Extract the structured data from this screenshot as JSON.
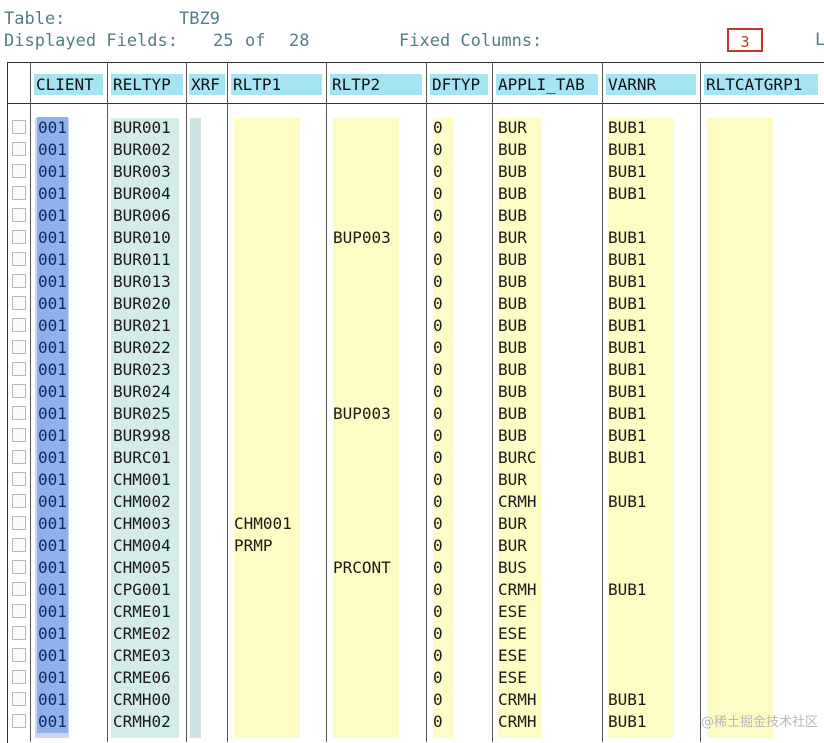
{
  "header": {
    "table_label": "Table:",
    "table_name": "TBZ9",
    "displayed_label": "Displayed Fields:",
    "displayed_count": "25",
    "of_label": "of",
    "total_count": "28",
    "fixed_label": "Fixed Columns:",
    "fixed_value": "3",
    "truncated_text": "L"
  },
  "columns": [
    "CLIENT",
    "RELTYP",
    "XRF",
    "RLTP1",
    "RLTP2",
    "DFTYP",
    "APPLI_TAB",
    "VARNR",
    "RLTCATGRP1"
  ],
  "rows": [
    {
      "client": "001",
      "reltyp": "BUR001",
      "rltp1": "",
      "rltp2": "",
      "dftyp": "0",
      "appli": "BUR",
      "varnr": "BUB1"
    },
    {
      "client": "001",
      "reltyp": "BUR002",
      "rltp1": "",
      "rltp2": "",
      "dftyp": "0",
      "appli": "BUB",
      "varnr": "BUB1"
    },
    {
      "client": "001",
      "reltyp": "BUR003",
      "rltp1": "",
      "rltp2": "",
      "dftyp": "0",
      "appli": "BUB",
      "varnr": "BUB1"
    },
    {
      "client": "001",
      "reltyp": "BUR004",
      "rltp1": "",
      "rltp2": "",
      "dftyp": "0",
      "appli": "BUB",
      "varnr": "BUB1"
    },
    {
      "client": "001",
      "reltyp": "BUR006",
      "rltp1": "",
      "rltp2": "",
      "dftyp": "0",
      "appli": "BUB",
      "varnr": ""
    },
    {
      "client": "001",
      "reltyp": "BUR010",
      "rltp1": "",
      "rltp2": "BUP003",
      "dftyp": "0",
      "appli": "BUR",
      "varnr": "BUB1"
    },
    {
      "client": "001",
      "reltyp": "BUR011",
      "rltp1": "",
      "rltp2": "",
      "dftyp": "0",
      "appli": "BUB",
      "varnr": "BUB1"
    },
    {
      "client": "001",
      "reltyp": "BUR013",
      "rltp1": "",
      "rltp2": "",
      "dftyp": "0",
      "appli": "BUB",
      "varnr": "BUB1"
    },
    {
      "client": "001",
      "reltyp": "BUR020",
      "rltp1": "",
      "rltp2": "",
      "dftyp": "0",
      "appli": "BUB",
      "varnr": "BUB1"
    },
    {
      "client": "001",
      "reltyp": "BUR021",
      "rltp1": "",
      "rltp2": "",
      "dftyp": "0",
      "appli": "BUB",
      "varnr": "BUB1"
    },
    {
      "client": "001",
      "reltyp": "BUR022",
      "rltp1": "",
      "rltp2": "",
      "dftyp": "0",
      "appli": "BUB",
      "varnr": "BUB1"
    },
    {
      "client": "001",
      "reltyp": "BUR023",
      "rltp1": "",
      "rltp2": "",
      "dftyp": "0",
      "appli": "BUB",
      "varnr": "BUB1"
    },
    {
      "client": "001",
      "reltyp": "BUR024",
      "rltp1": "",
      "rltp2": "",
      "dftyp": "0",
      "appli": "BUB",
      "varnr": "BUB1"
    },
    {
      "client": "001",
      "reltyp": "BUR025",
      "rltp1": "",
      "rltp2": "BUP003",
      "dftyp": "0",
      "appli": "BUB",
      "varnr": "BUB1"
    },
    {
      "client": "001",
      "reltyp": "BUR998",
      "rltp1": "",
      "rltp2": "",
      "dftyp": "0",
      "appli": "BUB",
      "varnr": "BUB1"
    },
    {
      "client": "001",
      "reltyp": "BURC01",
      "rltp1": "",
      "rltp2": "",
      "dftyp": "0",
      "appli": "BURC",
      "varnr": "BUB1"
    },
    {
      "client": "001",
      "reltyp": "CHM001",
      "rltp1": "",
      "rltp2": "",
      "dftyp": "0",
      "appli": "BUR",
      "varnr": ""
    },
    {
      "client": "001",
      "reltyp": "CHM002",
      "rltp1": "",
      "rltp2": "",
      "dftyp": "0",
      "appli": "CRMH",
      "varnr": "BUB1"
    },
    {
      "client": "001",
      "reltyp": "CHM003",
      "rltp1": "CHM001",
      "rltp2": "",
      "dftyp": "0",
      "appli": "BUR",
      "varnr": ""
    },
    {
      "client": "001",
      "reltyp": "CHM004",
      "rltp1": "PRMP",
      "rltp2": "",
      "dftyp": "0",
      "appli": "BUR",
      "varnr": ""
    },
    {
      "client": "001",
      "reltyp": "CHM005",
      "rltp1": "",
      "rltp2": "PRCONT",
      "dftyp": "0",
      "appli": "BUS",
      "varnr": ""
    },
    {
      "client": "001",
      "reltyp": "CPG001",
      "rltp1": "",
      "rltp2": "",
      "dftyp": "0",
      "appli": "CRMH",
      "varnr": "BUB1"
    },
    {
      "client": "001",
      "reltyp": "CRME01",
      "rltp1": "",
      "rltp2": "",
      "dftyp": "0",
      "appli": "ESE",
      "varnr": ""
    },
    {
      "client": "001",
      "reltyp": "CRME02",
      "rltp1": "",
      "rltp2": "",
      "dftyp": "0",
      "appli": "ESE",
      "varnr": ""
    },
    {
      "client": "001",
      "reltyp": "CRME03",
      "rltp1": "",
      "rltp2": "",
      "dftyp": "0",
      "appli": "ESE",
      "varnr": ""
    },
    {
      "client": "001",
      "reltyp": "CRME06",
      "rltp1": "",
      "rltp2": "",
      "dftyp": "0",
      "appli": "ESE",
      "varnr": ""
    },
    {
      "client": "001",
      "reltyp": "CRMH00",
      "rltp1": "",
      "rltp2": "",
      "dftyp": "0",
      "appli": "CRMH",
      "varnr": "BUB1"
    },
    {
      "client": "001",
      "reltyp": "CRMH02",
      "rltp1": "",
      "rltp2": "",
      "dftyp": "0",
      "appli": "CRMH",
      "varnr": "BUB1"
    }
  ],
  "watermark": "@稀土掘金技术社区"
}
